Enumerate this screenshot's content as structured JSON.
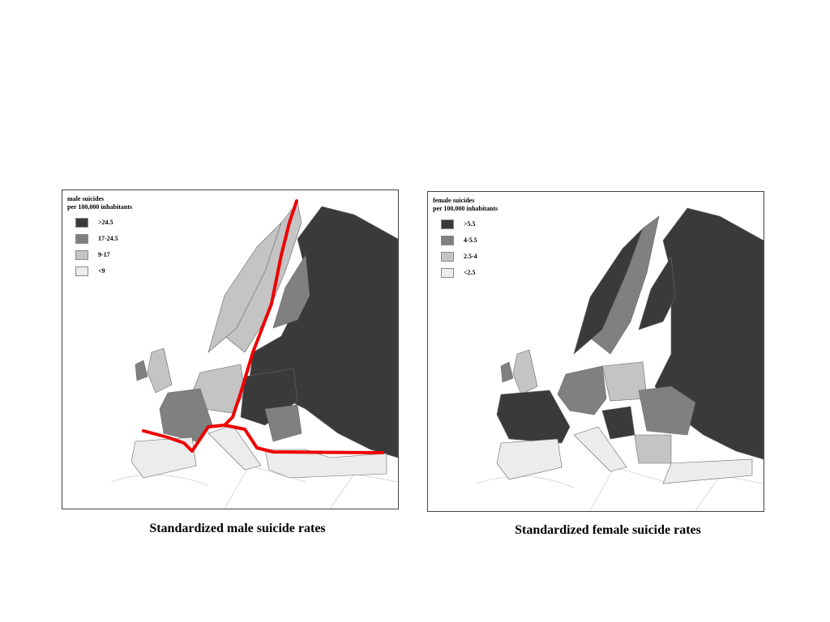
{
  "maps": [
    {
      "legend_title": "male suicides",
      "legend_subtitle": "per 100,000 inhabitants",
      "legend": [
        ">24.5",
        "17-24.5",
        "9-17",
        "<9"
      ],
      "caption": "Standardized male suicide rates"
    },
    {
      "legend_title": "female suicides",
      "legend_subtitle": "per 100,000 inhabitants",
      "legend": [
        ">5.5",
        "4-5.5",
        "2.5-4",
        "<2.5"
      ],
      "caption": "Standardized female suicide rates"
    }
  ]
}
